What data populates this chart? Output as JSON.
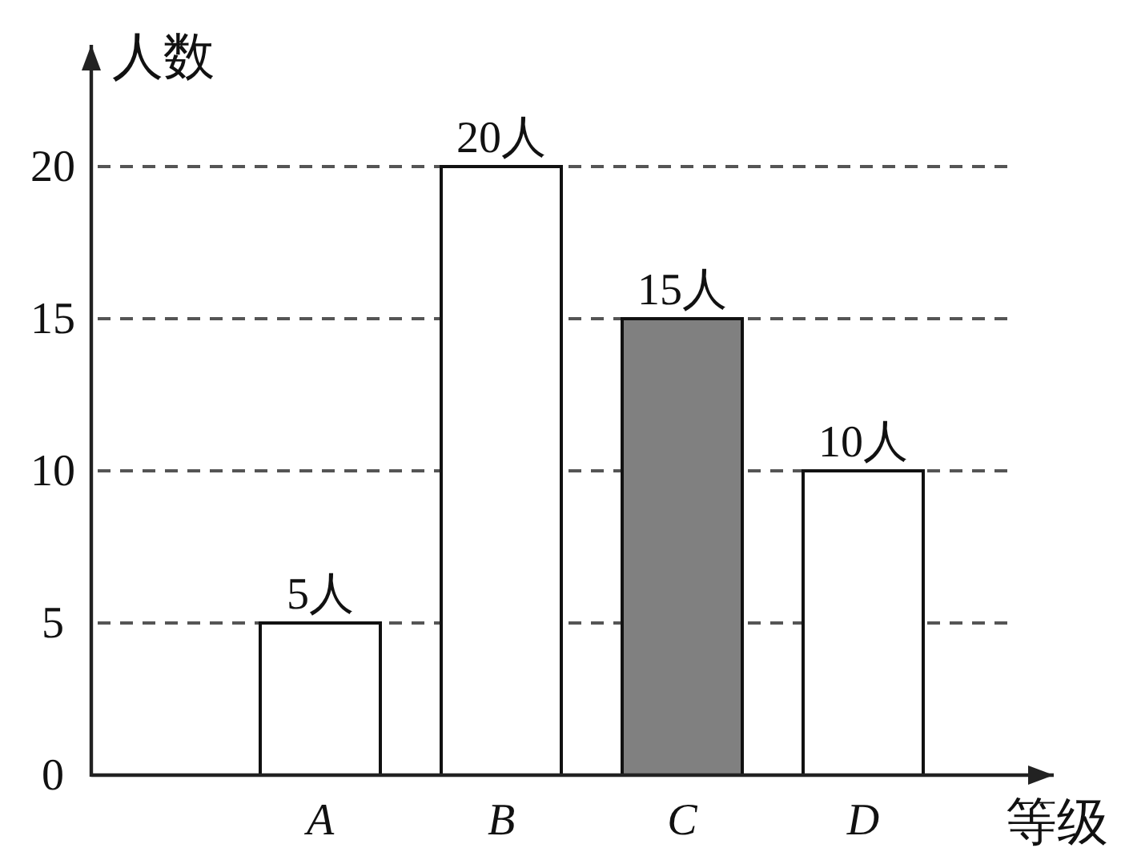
{
  "chart_data": {
    "type": "bar",
    "xlabel": "等级",
    "ylabel": "人数",
    "categories": [
      "A",
      "B",
      "C",
      "D"
    ],
    "values": [
      5,
      20,
      15,
      10
    ],
    "colors": [
      "#ffffff",
      "#ffffff",
      "#808080",
      "#ffffff"
    ],
    "value_labels": [
      "5人",
      "20人",
      "15人",
      "10人"
    ],
    "ylim": [
      0,
      24
    ],
    "yticks": [
      0,
      5,
      10,
      15,
      20
    ],
    "grid": "y"
  }
}
